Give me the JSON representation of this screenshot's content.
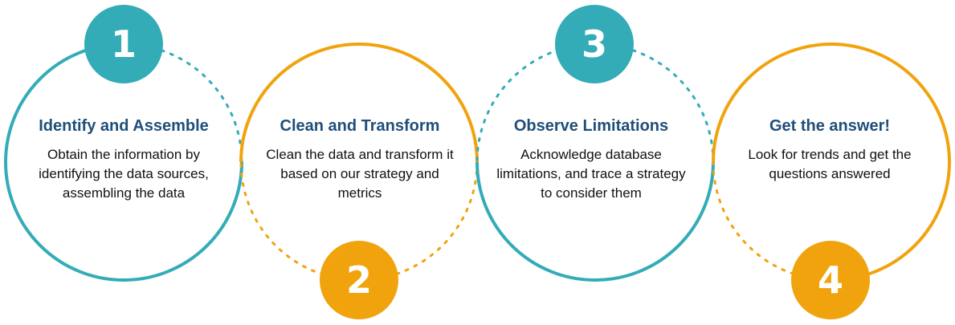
{
  "colors": {
    "teal": "#33acb7",
    "orange": "#f1a30e",
    "title": "#1f4e79",
    "text": "#111111"
  },
  "steps": [
    {
      "number": "1",
      "title": "Identify and Assemble",
      "description": "Obtain the information by identifying the data sources, assembling the data",
      "color": "teal"
    },
    {
      "number": "2",
      "title": "Clean and Transform",
      "description": "Clean the data and transform it based on our strategy and metrics",
      "color": "orange"
    },
    {
      "number": "3",
      "title": "Observe Limitations",
      "description": "Acknowledge database limitations, and trace a strategy to consider them",
      "color": "teal"
    },
    {
      "number": "4",
      "title": "Get the answer!",
      "description": "Look for trends and get the questions answered",
      "color": "orange"
    }
  ]
}
